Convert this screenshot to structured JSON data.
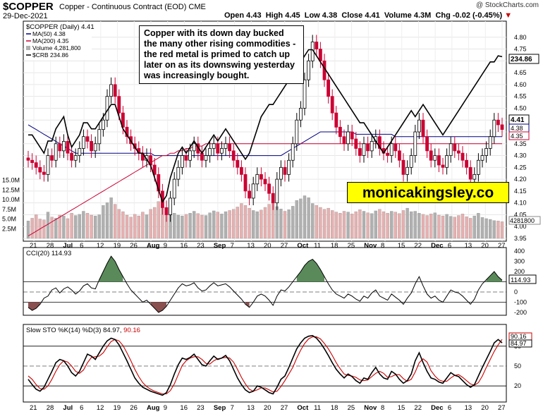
{
  "header": {
    "symbol": "$COPPER",
    "contract": "Copper - Continuous Contract (EOD)  CME",
    "date": "29-Dec-2021",
    "open": "Open 4.43",
    "high": "High 4.45",
    "low": "Low 4.38",
    "close": "Close 4.41",
    "volume": "Volume 4.3M",
    "change": "Chg -0.02 (-0.45%)",
    "change_arrow": "▼",
    "credit": "@ StockCharts.com"
  },
  "legend": {
    "main": "$COPPER (Daily) 4.41",
    "ma50": "MA(50) 4.38",
    "ma200": "MA(200) 4.35",
    "volume": "Volume 4,281,800",
    "crb": "$CRB 234.86"
  },
  "annotation": "Copper with its down day bucked the many other rising commodities - the red metal is primed to catch up later on as its downswing yesterday was increasingly bought.",
  "brand": "monicakingsley.co",
  "price_badges": {
    "crb": "234.86",
    "close": "4.41",
    "ma50": "4.38",
    "ma200": "4.35",
    "volume": "4281800"
  },
  "cci_label": "CCI(20) 114.93",
  "cci_badge": "114.93",
  "sto_label_k": "Slow STO %K(14) %D(3) 84.97, ",
  "sto_label_d": "90.16",
  "sto_badge_d": "90.16",
  "sto_badge_k": "84.97",
  "colors": {
    "up": "#000000",
    "down": "#cc0033",
    "ma50": "#000080",
    "ma200": "#cc0033",
    "cci_fill_pos": "#5a8a5a",
    "cci_fill_neg": "#8a5050",
    "vol_up": "#b0b0b0",
    "vol_down": "#e8b0b0",
    "brand_bg": "#ffff00"
  },
  "chart_data": [
    {
      "type": "candlestick",
      "title": "$COPPER (Daily) 4.41",
      "ylim": [
        3.95,
        4.85
      ],
      "yticks": [
        "4.80",
        "4.75",
        "4.70",
        "4.65",
        "4.60",
        "4.55",
        "4.50",
        "4.45",
        "4.40",
        "4.35",
        "4.30",
        "4.25",
        "4.20",
        "4.15",
        "4.10",
        "4.05",
        "4.00",
        "3.95"
      ],
      "x_tick_labels": [
        "21",
        "28",
        "Jul",
        "6",
        "12",
        "19",
        "26",
        "Aug",
        "9",
        "16",
        "23",
        "Sep",
        "7",
        "13",
        "20",
        "27",
        "Oct",
        "11",
        "18",
        "25",
        "Nov",
        "8",
        "15",
        "22",
        "Dec",
        "6",
        "13",
        "20",
        "27"
      ],
      "close": [
        4.28,
        4.27,
        4.25,
        4.23,
        4.22,
        4.3,
        4.28,
        4.35,
        4.32,
        4.36,
        4.31,
        4.28,
        4.3,
        4.33,
        4.38,
        4.36,
        4.32,
        4.35,
        4.41,
        4.45,
        4.55,
        4.6,
        4.55,
        4.48,
        4.42,
        4.38,
        4.35,
        4.33,
        4.31,
        4.28,
        4.3,
        4.26,
        4.22,
        4.15,
        4.08,
        4.05,
        4.12,
        4.2,
        4.25,
        4.3,
        4.28,
        4.32,
        4.35,
        4.31,
        4.28,
        4.3,
        4.33,
        4.35,
        4.31,
        4.33,
        4.35,
        4.32,
        4.28,
        4.25,
        4.22,
        4.15,
        4.12,
        4.18,
        4.22,
        4.2,
        4.18,
        4.14,
        4.1,
        4.2,
        4.25,
        4.22,
        4.28,
        4.35,
        4.45,
        4.5,
        4.62,
        4.7,
        4.78,
        4.75,
        4.7,
        4.62,
        4.55,
        4.48,
        4.42,
        4.38,
        4.35,
        4.4,
        4.37,
        4.33,
        4.3,
        4.35,
        4.32,
        4.36,
        4.38,
        4.33,
        4.31,
        4.3,
        4.35,
        4.32,
        4.28,
        4.22,
        4.25,
        4.3,
        4.4,
        4.45,
        4.38,
        4.32,
        4.28,
        4.3,
        4.26,
        4.25,
        4.3,
        4.35,
        4.32,
        4.31,
        4.28,
        4.25,
        4.2,
        4.22,
        4.28,
        4.3,
        4.33,
        4.38,
        4.45,
        4.43,
        4.41
      ],
      "volume": [
        4.5,
        5.2,
        6.1,
        5.0,
        4.8,
        6.8,
        5.5,
        5.2,
        6.0,
        5.8,
        5.1,
        6.5,
        5.9,
        6.2,
        7.0,
        6.5,
        6.0,
        5.8,
        6.1,
        8.5,
        9.2,
        10.5,
        8.8,
        7.5,
        6.9,
        6.0,
        5.5,
        6.2,
        5.8,
        6.8,
        6.1,
        7.5,
        8.0,
        9.5,
        8.8,
        7.9,
        7.0,
        6.5,
        6.0,
        5.8,
        6.2,
        6.5,
        7.0,
        6.4,
        6.0,
        5.9,
        6.6,
        7.1,
        6.8,
        6.3,
        6.9,
        7.2,
        7.5,
        8.1,
        9.0,
        8.5,
        7.8,
        7.2,
        6.9,
        7.3,
        8.0,
        8.8,
        9.5,
        8.2,
        7.6,
        7.0,
        7.4,
        8.3,
        9.8,
        10.2,
        11.0,
        10.5,
        9.0,
        8.5,
        8.0,
        7.5,
        7.8,
        7.2,
        6.8,
        6.5,
        7.0,
        6.8,
        6.3,
        6.9,
        7.4,
        7.0,
        6.6,
        6.4,
        7.1,
        7.5,
        6.9,
        6.5,
        7.0,
        6.8,
        6.4,
        7.2,
        7.8,
        6.9,
        7.0,
        6.5,
        6.2,
        5.9,
        6.3,
        6.6,
        6.0,
        5.8,
        6.2,
        5.7,
        5.5,
        5.9,
        6.3,
        5.6,
        5.2,
        5.8,
        6.5,
        5.4,
        5.1,
        4.9,
        4.6,
        4.5,
        4.3
      ],
      "ma50": [
        4.43,
        4.42,
        4.41,
        4.4,
        4.39,
        4.38,
        4.37,
        4.36,
        4.35,
        4.34,
        4.33,
        4.32,
        4.31,
        4.31,
        4.31,
        4.31,
        4.31,
        4.31,
        4.31,
        4.31,
        4.31,
        4.31,
        4.31,
        4.31,
        4.31,
        4.31,
        4.31,
        4.31,
        4.31,
        4.31,
        4.31,
        4.31,
        4.3,
        4.3,
        4.3,
        4.3,
        4.3,
        4.3,
        4.3,
        4.3,
        4.3,
        4.3,
        4.3,
        4.3,
        4.3,
        4.3,
        4.3,
        4.3,
        4.3,
        4.3,
        4.3,
        4.3,
        4.3,
        4.3,
        4.3,
        4.3,
        4.3,
        4.3,
        4.3,
        4.3,
        4.3,
        4.3,
        4.3,
        4.3,
        4.3,
        4.31,
        4.32,
        4.33,
        4.34,
        4.35,
        4.36,
        4.37,
        4.38,
        4.39,
        4.4,
        4.4,
        4.4,
        4.4,
        4.4,
        4.4,
        4.4,
        4.4,
        4.4,
        4.39,
        4.39,
        4.39,
        4.39,
        4.39,
        4.39,
        4.39,
        4.39,
        4.39,
        4.39,
        4.38,
        4.38,
        4.38,
        4.38,
        4.38,
        4.38,
        4.38,
        4.38,
        4.38,
        4.38,
        4.38,
        4.38,
        4.38,
        4.38,
        4.38,
        4.38,
        4.38,
        4.38,
        4.38,
        4.38,
        4.38,
        4.38,
        4.38,
        4.38,
        4.38,
        4.38,
        4.38,
        4.38
      ],
      "ma200": [
        3.96,
        3.97,
        3.98,
        3.99,
        4.0,
        4.01,
        4.02,
        4.03,
        4.04,
        4.05,
        4.06,
        4.07,
        4.08,
        4.09,
        4.1,
        4.11,
        4.12,
        4.13,
        4.14,
        4.15,
        4.16,
        4.17,
        4.18,
        4.19,
        4.2,
        4.21,
        4.22,
        4.23,
        4.24,
        4.25,
        4.26,
        4.27,
        4.28,
        4.29,
        4.3,
        4.3,
        4.31,
        4.31,
        4.32,
        4.32,
        4.33,
        4.33,
        4.34,
        4.34,
        4.34,
        4.35,
        4.35,
        4.35,
        4.35,
        4.35,
        4.35,
        4.35,
        4.35,
        4.35,
        4.35,
        4.35,
        4.35,
        4.35,
        4.35,
        4.35,
        4.35,
        4.35,
        4.35,
        4.35,
        4.35,
        4.35,
        4.35,
        4.35,
        4.35,
        4.35,
        4.35,
        4.35,
        4.35,
        4.35,
        4.35,
        4.35,
        4.35,
        4.35,
        4.35,
        4.35,
        4.35,
        4.35,
        4.35,
        4.35,
        4.35,
        4.35,
        4.35,
        4.35,
        4.35,
        4.35,
        4.35,
        4.35,
        4.35,
        4.35,
        4.35,
        4.35,
        4.35,
        4.35,
        4.35,
        4.35,
        4.35,
        4.35,
        4.35,
        4.35,
        4.35,
        4.35,
        4.35,
        4.35,
        4.35,
        4.35,
        4.35,
        4.35,
        4.35,
        4.35,
        4.35,
        4.35,
        4.35,
        4.35,
        4.35,
        4.35,
        4.35
      ],
      "crb": [
        222,
        222,
        221,
        220,
        219,
        221,
        221,
        223,
        224,
        225,
        222,
        220,
        221,
        222,
        224,
        224,
        223,
        223,
        224,
        225,
        226,
        227,
        227,
        225,
        223,
        222,
        221,
        220,
        219,
        219,
        218,
        217,
        215,
        213,
        211,
        212,
        215,
        217,
        219,
        220,
        219,
        220,
        221,
        220,
        219,
        220,
        221,
        222,
        221,
        222,
        223,
        222,
        221,
        220,
        219,
        218,
        219,
        221,
        223,
        225,
        226,
        227,
        227,
        228,
        229,
        230,
        231,
        232,
        233,
        234,
        235,
        236,
        236,
        235,
        234,
        233,
        232,
        231,
        230,
        229,
        228,
        227,
        226,
        225,
        224,
        224,
        223,
        222,
        221,
        220,
        219,
        220,
        221,
        222,
        223,
        224,
        225,
        226,
        225,
        226,
        227,
        226,
        225,
        224,
        223,
        222,
        223,
        224,
        225,
        226,
        227,
        228,
        229,
        230,
        231,
        232,
        233,
        234,
        234,
        235,
        234.86
      ]
    },
    {
      "type": "line",
      "title": "CCI(20) 114.93",
      "ylim": [
        -200,
        400
      ],
      "yticks": [
        "400",
        "300",
        "200",
        "100",
        "0",
        "-100",
        "-200"
      ],
      "reference_lines": [
        100,
        -100
      ],
      "values": [
        -150,
        -180,
        -160,
        -120,
        -60,
        -40,
        20,
        40,
        -10,
        30,
        50,
        20,
        -20,
        10,
        60,
        80,
        40,
        30,
        120,
        200,
        280,
        350,
        300,
        220,
        150,
        80,
        20,
        -20,
        -60,
        -100,
        -80,
        -120,
        -160,
        -200,
        -180,
        -140,
        -80,
        -20,
        40,
        80,
        60,
        70,
        90,
        40,
        10,
        20,
        60,
        90,
        60,
        70,
        80,
        50,
        10,
        -30,
        -70,
        -120,
        -150,
        -100,
        -40,
        -20,
        -40,
        -80,
        -130,
        -40,
        20,
        10,
        50,
        100,
        150,
        200,
        260,
        300,
        320,
        280,
        220,
        150,
        80,
        20,
        -20,
        -40,
        -60,
        -20,
        -40,
        -70,
        -90,
        -40,
        -60,
        -10,
        20,
        -40,
        -60,
        -80,
        -20,
        -50,
        -80,
        -120,
        -60,
        -10,
        80,
        150,
        60,
        -20,
        -60,
        -40,
        -80,
        -100,
        -40,
        20,
        0,
        -10,
        -40,
        -80,
        -120,
        -70,
        20,
        80,
        120,
        160,
        200,
        150,
        114.93
      ]
    },
    {
      "type": "line",
      "title": "Slow STO %K(14) %D(3)",
      "ylim": [
        0,
        100
      ],
      "yticks": [
        "80",
        "50",
        "20"
      ],
      "reference_lines": [
        80,
        20
      ],
      "series": [
        {
          "name": "%K",
          "color": "#000000",
          "values": [
            30,
            22,
            15,
            12,
            18,
            30,
            42,
            55,
            60,
            58,
            50,
            40,
            35,
            42,
            55,
            68,
            65,
            60,
            70,
            80,
            88,
            92,
            90,
            82,
            70,
            58,
            45,
            32,
            24,
            18,
            15,
            12,
            10,
            8,
            6,
            10,
            22,
            38,
            52,
            62,
            60,
            63,
            68,
            60,
            52,
            50,
            58,
            65,
            60,
            62,
            66,
            58,
            45,
            32,
            22,
            14,
            10,
            12,
            20,
            18,
            14,
            10,
            8,
            18,
            30,
            35,
            48,
            62,
            76,
            85,
            92,
            95,
            96,
            92,
            85,
            76,
            66,
            55,
            45,
            38,
            32,
            38,
            34,
            28,
            24,
            32,
            30,
            40,
            48,
            38,
            32,
            30,
            42,
            38,
            30,
            24,
            28,
            38,
            58,
            70,
            55,
            42,
            32,
            30,
            26,
            24,
            32,
            40,
            36,
            34,
            28,
            22,
            18,
            22,
            35,
            48,
            60,
            72,
            85,
            90,
            84.97
          ]
        },
        {
          "name": "%D",
          "color": "#cc0000",
          "values": [
            35,
            30,
            22,
            16,
            15,
            20,
            30,
            42,
            52,
            58,
            56,
            50,
            42,
            39,
            44,
            55,
            63,
            64,
            65,
            70,
            79,
            87,
            90,
            88,
            81,
            70,
            58,
            45,
            34,
            25,
            19,
            15,
            12,
            10,
            8,
            8,
            13,
            23,
            37,
            51,
            58,
            62,
            64,
            64,
            60,
            54,
            53,
            58,
            61,
            62,
            63,
            62,
            56,
            45,
            33,
            23,
            15,
            12,
            14,
            17,
            17,
            14,
            11,
            12,
            19,
            28,
            38,
            48,
            62,
            74,
            84,
            91,
            94,
            94,
            91,
            84,
            76,
            66,
            55,
            46,
            38,
            36,
            35,
            33,
            29,
            28,
            29,
            34,
            39,
            42,
            39,
            33,
            34,
            37,
            37,
            31,
            27,
            30,
            41,
            55,
            61,
            56,
            43,
            35,
            29,
            27,
            27,
            32,
            36,
            37,
            33,
            28,
            23,
            21,
            25,
            35,
            48,
            60,
            72,
            82,
            90.16
          ]
        }
      ]
    }
  ]
}
